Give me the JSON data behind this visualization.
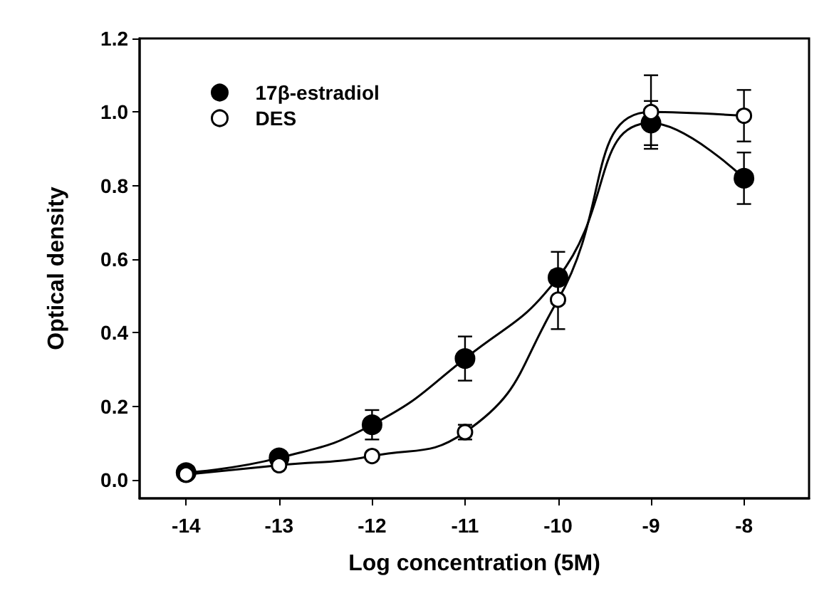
{
  "chart_data": {
    "type": "line",
    "xlabel": "Log concentration (5M)",
    "ylabel": "Optical density",
    "x": [
      -14,
      -13,
      -12,
      -11,
      -10,
      -9,
      -8
    ],
    "series": [
      {
        "name": "17β-estradiol",
        "color": "#000000",
        "values": [
          0.02,
          0.06,
          0.15,
          0.33,
          0.55,
          0.97,
          0.82
        ],
        "errors": [
          null,
          null,
          0.04,
          0.06,
          0.07,
          0.06,
          0.07
        ]
      },
      {
        "name": "DES",
        "color": "#000000",
        "values": [
          0.015,
          0.04,
          0.065,
          0.13,
          0.49,
          1.0,
          0.99
        ],
        "errors": [
          null,
          null,
          null,
          0.02,
          0.08,
          0.1,
          0.07
        ]
      }
    ],
    "xlim": [
      -14.5,
      -7.3
    ],
    "ylim": [
      -0.05,
      1.2
    ],
    "xticks": [
      -14,
      -13,
      -12,
      -11,
      -10,
      -9,
      -8
    ],
    "yticks": [
      {
        "value": 0,
        "label": "0.0"
      },
      {
        "value": 0.2,
        "label": "0.2"
      },
      {
        "value": 0.4,
        "label": "0.4"
      },
      {
        "value": 0.6,
        "label": "0.6"
      },
      {
        "value": 0.8,
        "label": "0.8"
      },
      {
        "value": 1,
        "label": "1.0"
      },
      {
        "value": 1.2,
        "label": "1.2"
      }
    ],
    "grid": false,
    "legend": "top left",
    "marker": "circle",
    "line_style": "solid"
  }
}
